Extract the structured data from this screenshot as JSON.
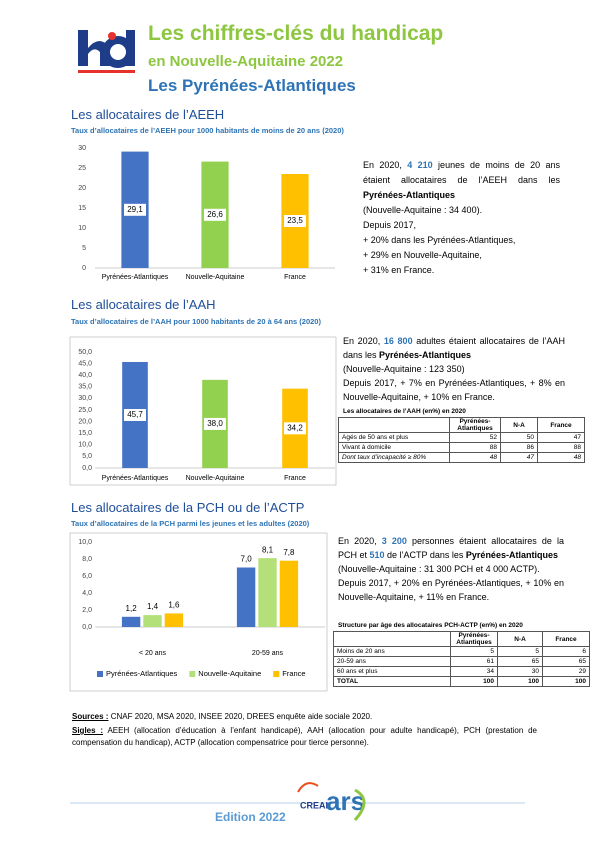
{
  "header": {
    "title": "Les chiffres-clés du handicap",
    "subtitle": "en Nouvelle-Aquitaine 2022",
    "region": "Les Pyrénées-Atlantiques"
  },
  "sections": [
    {
      "heading": "Les allocataires de l’AEEH",
      "caption": "Taux d’allocataires de l’AEEH pour 1000 habitants de moins de 20 ans (2020)",
      "chart_data": {
        "type": "bar",
        "categories": [
          "Pyrénées-Atlantiques",
          "Nouvelle-Aquitaine",
          "France"
        ],
        "values": [
          29.1,
          26.6,
          23.5
        ],
        "value_labels": [
          "29,1",
          "26,6",
          "23,5"
        ],
        "colors": [
          "#4472c4",
          "#92d050",
          "#ffc000"
        ],
        "ylim": [
          0,
          30
        ],
        "yticks": [
          0,
          5,
          10,
          15,
          20,
          25,
          30
        ],
        "grid": false
      },
      "text": [
        "En 2020, ",
        "4 210",
        " jeunes de moins de 20 ans étaient allocataires de l’AEEH dans les ",
        "Pyrénées-Atlantiques",
        "(Nouvelle-Aquitaine : 34 400).",
        "Depuis 2017,",
        "+ 20% dans les Pyrénées-Atlantiques,",
        "+ 29% en Nouvelle-Aquitaine,",
        "+ 31% en France."
      ]
    },
    {
      "heading": "Les allocataires de l’AAH",
      "caption": "Taux d’allocataires de l’AAH pour 1000 habitants de 20 à 64 ans (2020)",
      "chart_data": {
        "type": "bar",
        "categories": [
          "Pyrénées-Atlantiques",
          "Nouvelle-Aquitaine",
          "France"
        ],
        "values": [
          45.7,
          38.0,
          34.2
        ],
        "value_labels": [
          "45,7",
          "38,0",
          "34,2"
        ],
        "colors": [
          "#4472c4",
          "#92d050",
          "#ffc000"
        ],
        "ylim": [
          0,
          50
        ],
        "yticks": [
          {
            "value": 0,
            "label": "0,0"
          },
          {
            "value": 5,
            "label": "5,0"
          },
          {
            "value": 10,
            "label": "10,0"
          },
          {
            "value": 15,
            "label": "15,0"
          },
          {
            "value": 20,
            "label": "20,0"
          },
          {
            "value": 25,
            "label": "25,0"
          },
          {
            "value": 30,
            "label": "30,0"
          },
          {
            "value": 35,
            "label": "35,0"
          },
          {
            "value": 40,
            "label": "40,0"
          },
          {
            "value": 45,
            "label": "45,0"
          },
          {
            "value": 50,
            "label": "50,0"
          }
        ],
        "grid": false
      },
      "text": [
        "En 2020, ",
        "16 800",
        " adultes étaient allocataires de l’AAH dans les ",
        "Pyrénées-Atlantiques",
        "(Nouvelle-Aquitaine : 123 350)",
        "Depuis 2017, + 7% en Pyrénées-Atlantiques, + 8% en Nouvelle-Aquitaine, + 10% en France."
      ],
      "table": {
        "title": "Les allocataires de l’AAH (en%) en 2020",
        "columns": [
          "Pyrénées-Atlantiques",
          "N-A",
          "France"
        ],
        "rows": [
          {
            "label": "Agés de 50 ans et plus",
            "values": [
              52,
              50,
              47
            ]
          },
          {
            "label": "Vivant à domicile",
            "values": [
              88,
              86,
              88
            ]
          },
          {
            "label": "Dont taux d’incapacité ≥ 80%",
            "values": [
              48,
              47,
              48
            ]
          }
        ]
      }
    },
    {
      "heading": "Les allocataires de la PCH ou de l’ACTP",
      "caption": "Taux d’allocataires de la PCH parmi les jeunes et les adultes (2020)",
      "chart_data": {
        "type": "bar",
        "categories": [
          "< 20 ans",
          "20-59 ans"
        ],
        "series": [
          {
            "name": "Pyrénées-Atlantiques",
            "color": "#4472c4",
            "values": [
              1.2,
              7.0
            ],
            "value_labels": [
              "1,2",
              "7,0"
            ]
          },
          {
            "name": "Nouvelle-Aquitaine",
            "color": "#b4e07a",
            "values": [
              1.4,
              8.1
            ],
            "value_labels": [
              "1,4",
              "8,1"
            ]
          },
          {
            "name": "France",
            "color": "#ffc000",
            "values": [
              1.6,
              7.8
            ],
            "value_labels": [
              "1,6",
              "7,8"
            ]
          }
        ],
        "ylim": [
          0,
          10
        ],
        "yticks": [
          {
            "value": 0,
            "label": "0,0"
          },
          {
            "value": 2,
            "label": "2,0"
          },
          {
            "value": 4,
            "label": "4,0"
          },
          {
            "value": 6,
            "label": "6,0"
          },
          {
            "value": 8,
            "label": "8,0"
          },
          {
            "value": 10,
            "label": "10,0"
          }
        ],
        "grid": false,
        "legend": "bottom"
      },
      "text": [
        "En 2020, ",
        "3 200",
        " personnes étaient allocataires de la PCH et ",
        "510",
        " de l’ACTP dans les ",
        "Pyrénées-Atlantiques",
        "(Nouvelle-Aquitaine : 31 300 PCH et 4 000 ACTP).",
        "Depuis 2017, + 20% en Pyrénées-Atlantiques, + 10% en Nouvelle-Aquitaine, + 11% en France."
      ],
      "table": {
        "title": "Structure par âge des allocataires PCH-ACTP (en%) en 2020",
        "columns": [
          "Pyrénées-Atlantiques",
          "N-A",
          "France"
        ],
        "rows": [
          {
            "label": "Moins de 20 ans",
            "values": [
              5,
              5,
              6
            ]
          },
          {
            "label": "20-59 ans",
            "values": [
              61,
              65,
              65
            ]
          },
          {
            "label": "60 ans et plus",
            "values": [
              34,
              30,
              29
            ]
          },
          {
            "label": "TOTAL",
            "values": [
              100,
              100,
              100
            ]
          }
        ]
      }
    }
  ],
  "sources": {
    "label": "Sources :",
    "text": " CNAF 2020, MSA 2020, INSEE 2020, DREES enquête aide sociale 2020."
  },
  "sigles": {
    "label": "Sigles :",
    "text": " AEEH (allocation d’éducation à l’enfant handicapé), AAH (allocation pour adulte handicapé), PCH (prestation de compensation du handicap), ACTP (allocation compensatrice pour tierce personne)."
  },
  "footer": {
    "edition": "Edition 2022",
    "logo_creai": "CREAI",
    "logo_ars": "ars"
  }
}
